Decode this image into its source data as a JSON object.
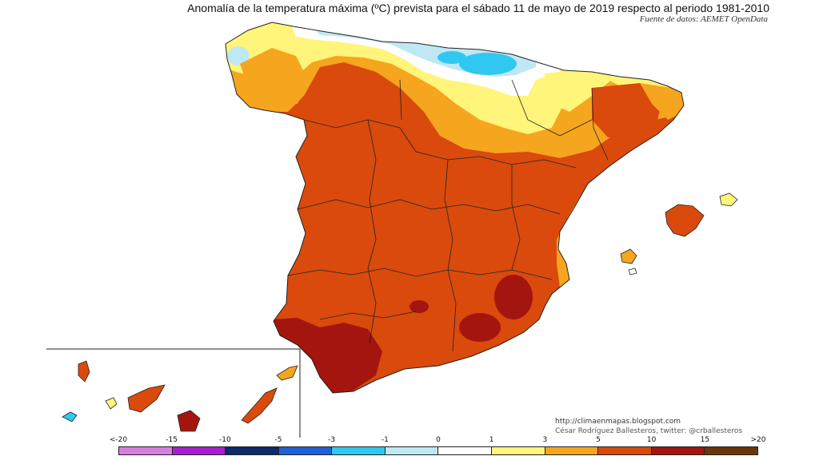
{
  "header": {
    "title": "Anomalía de la temperatura máxima (ºC) prevista para el sábado 11 de mayo de 2019 respecto al periodo 1981-2010",
    "source": "Fuente de datos: AEMET OpenData"
  },
  "credits": {
    "url": "http://climaenmapas.blogspot.com",
    "author": "César Rodríguez Ballesteros, twitter: @crballesteros"
  },
  "legend": {
    "ticks": [
      "<-20",
      "-15",
      "-10",
      "-5",
      "-3",
      "-1",
      "0",
      "1",
      "3",
      "5",
      "10",
      "15",
      ">20"
    ],
    "colors": [
      "#d67fe0",
      "#a71ed0",
      "#0b2a6b",
      "#1f5fd8",
      "#30c8f0",
      "#bfe8f5",
      "#ffffff",
      "#fff57a",
      "#f6a51e",
      "#d94a0c",
      "#a3150e",
      "#6b3509"
    ]
  },
  "map": {
    "colors": {
      "very_warm": "#d94a0c",
      "extreme": "#a3150e",
      "warm": "#f6a51e",
      "mild": "#fff57a",
      "neutral": "#ffffff",
      "cool": "#bfe8f5",
      "cold": "#30c8f0",
      "border": "#222222"
    }
  }
}
